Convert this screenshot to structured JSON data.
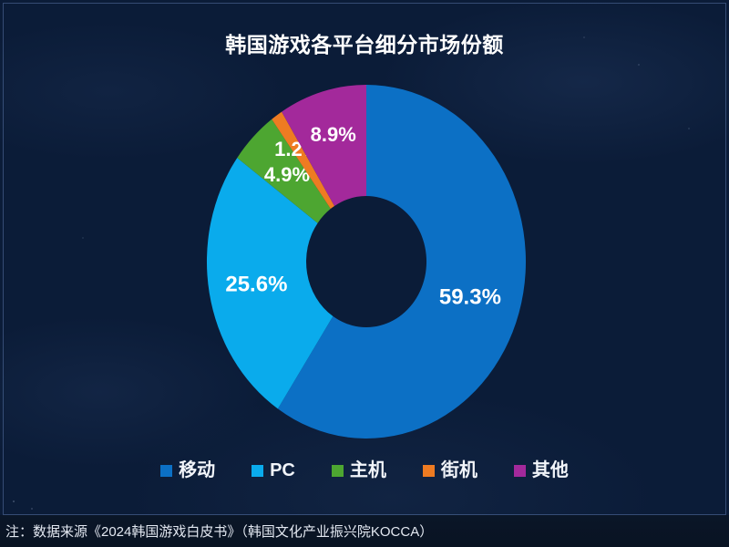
{
  "header": {
    "title": "韩国游戏各平台细分市场份额"
  },
  "chart_data": {
    "type": "pie",
    "subtype": "donut",
    "title": "韩国游戏各平台细分市场份额",
    "categories": [
      "移动",
      "PC",
      "主机",
      "街机",
      "其他"
    ],
    "values": [
      59.3,
      25.6,
      4.9,
      1.2,
      8.9
    ],
    "value_labels": [
      "59.3%",
      "25.6%",
      "4.9%",
      "1.2%",
      "8.9%"
    ],
    "colors": [
      "#0c70c5",
      "#0aabec",
      "#4da631",
      "#ee7b22",
      "#a3299b"
    ],
    "unit": "%",
    "start_angle": "12-oclock",
    "direction": "clockwise",
    "legend_position": "bottom",
    "label_color": "#ffffff",
    "background_color": "#0b1c38"
  },
  "footer": {
    "note": "注：数据来源《2024韩国游戏白皮书》（韩国文化产业振兴院KOCCA）"
  }
}
